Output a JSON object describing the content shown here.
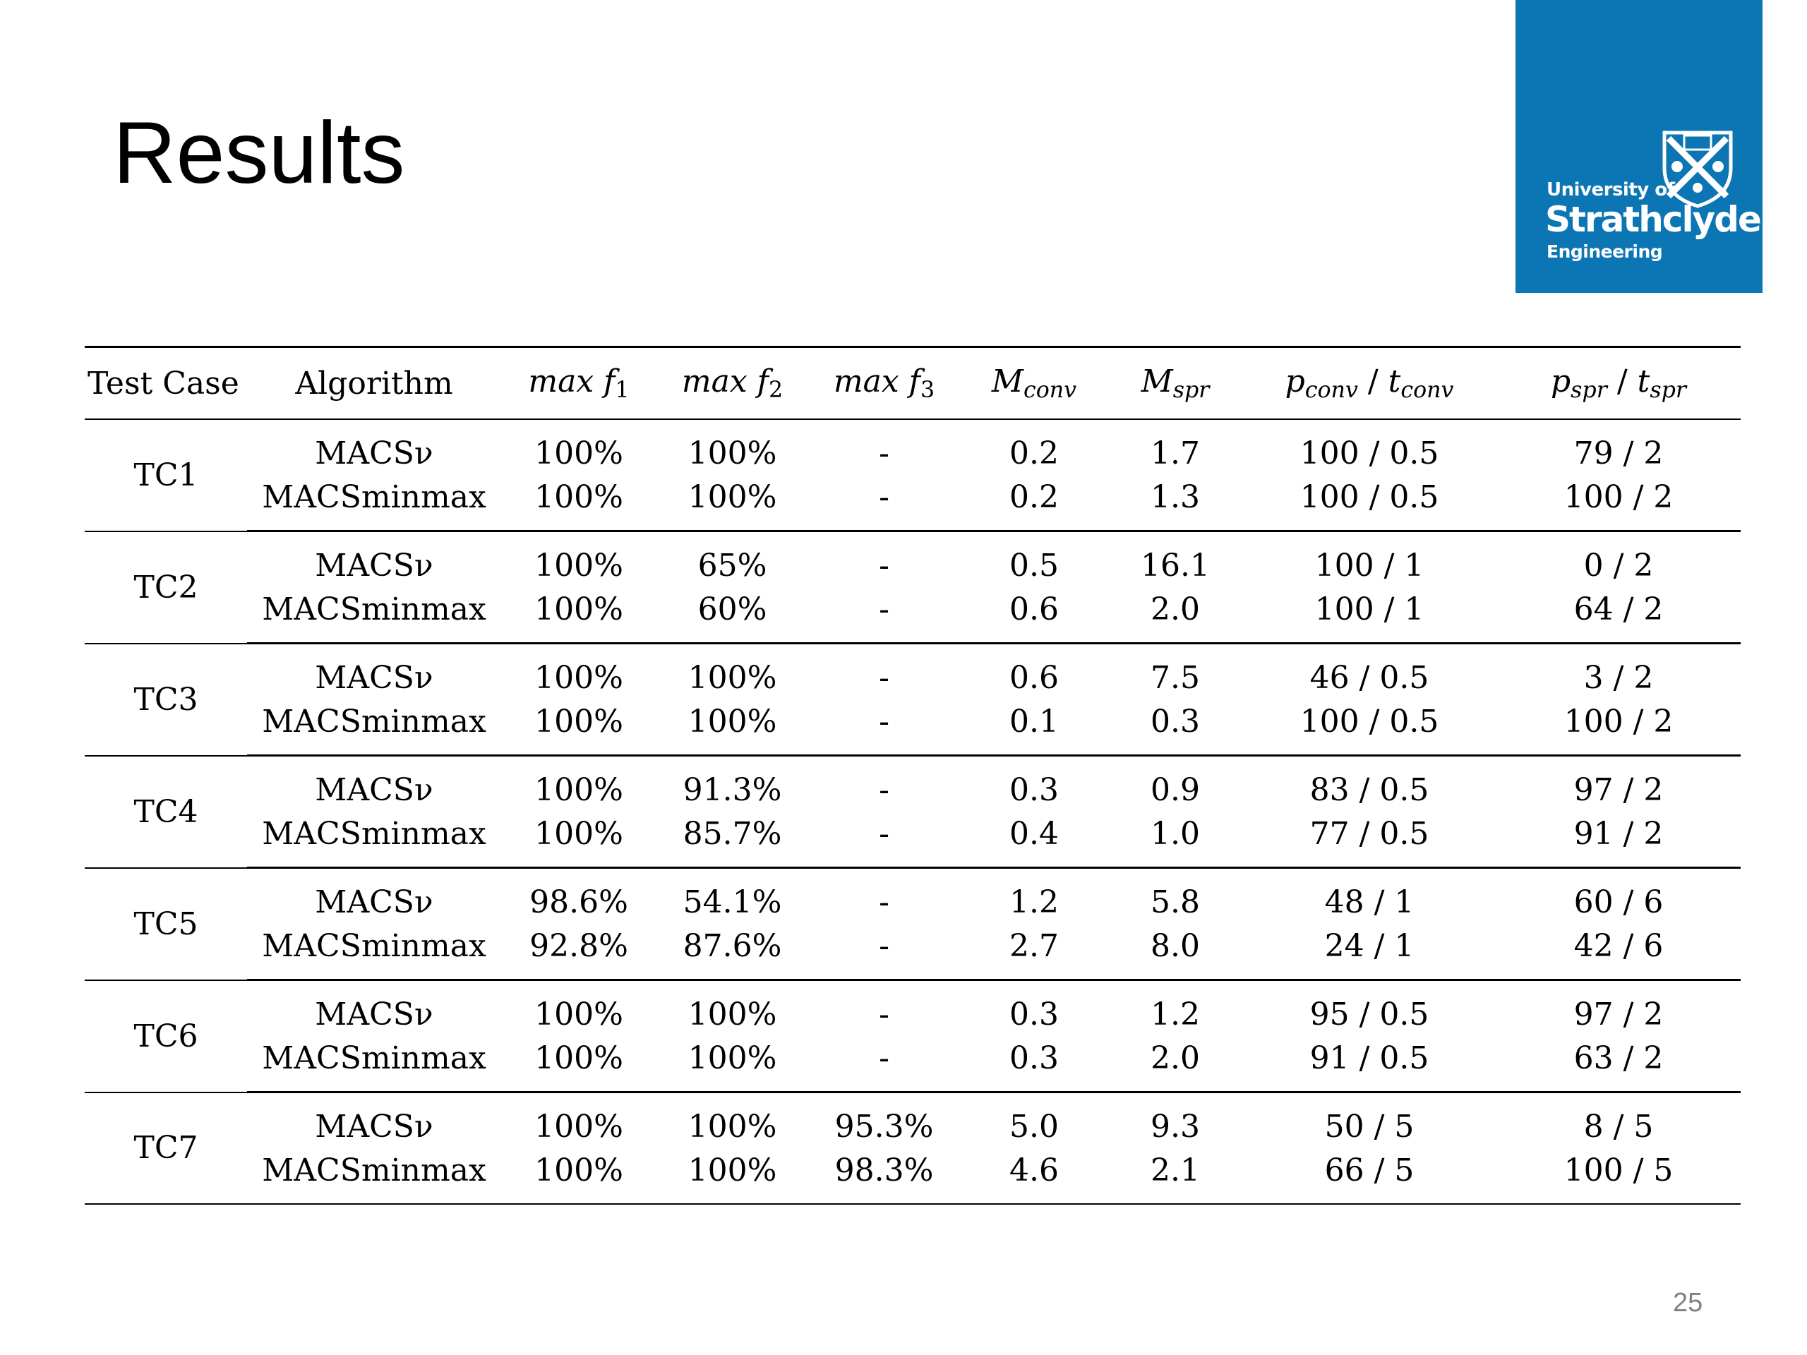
{
  "title": "Results",
  "logo": {
    "line1": "University of",
    "line2": "Strathclyde",
    "line3": "Engineering",
    "background": "#0c75b3"
  },
  "table": {
    "headers": {
      "test_case": "Test Case",
      "algorithm": "Algorithm",
      "max_f1": {
        "base": "max f",
        "sub": "1"
      },
      "max_f2": {
        "base": "max f",
        "sub": "2"
      },
      "max_f3": {
        "base": "max f",
        "sub": "3"
      },
      "m_conv": {
        "base": "M",
        "sub": "conv"
      },
      "m_spr": {
        "base": "M",
        "sub": "spr"
      },
      "p_conv_t_conv": {
        "p": "p",
        "p_sub": "conv",
        "sep": " / ",
        "t": "t",
        "t_sub": "conv"
      },
      "p_spr_t_spr": {
        "p": "p",
        "p_sub": "spr",
        "sep": " / ",
        "t": "t",
        "t_sub": "spr"
      }
    },
    "groups": [
      {
        "case": "TC1",
        "rows": [
          {
            "algorithm": "MACSν",
            "max_f1": "100%",
            "max_f2": "100%",
            "max_f3": "-",
            "m_conv": "0.2",
            "m_spr": "1.7",
            "p_t_conv": "100 / 0.5",
            "p_t_spr": "79 / 2"
          },
          {
            "algorithm": "MACSminmax",
            "max_f1": "100%",
            "max_f2": "100%",
            "max_f3": "-",
            "m_conv": "0.2",
            "m_spr": "1.3",
            "p_t_conv": "100 / 0.5",
            "p_t_spr": "100 / 2"
          }
        ]
      },
      {
        "case": "TC2",
        "rows": [
          {
            "algorithm": "MACSν",
            "max_f1": "100%",
            "max_f2": "65%",
            "max_f3": "-",
            "m_conv": "0.5",
            "m_spr": "16.1",
            "p_t_conv": "100 / 1",
            "p_t_spr": "0 / 2"
          },
          {
            "algorithm": "MACSminmax",
            "max_f1": "100%",
            "max_f2": "60%",
            "max_f3": "-",
            "m_conv": "0.6",
            "m_spr": "2.0",
            "p_t_conv": "100 / 1",
            "p_t_spr": "64 / 2"
          }
        ]
      },
      {
        "case": "TC3",
        "rows": [
          {
            "algorithm": "MACSν",
            "max_f1": "100%",
            "max_f2": "100%",
            "max_f3": "-",
            "m_conv": "0.6",
            "m_spr": "7.5",
            "p_t_conv": "46 / 0.5",
            "p_t_spr": "3 / 2"
          },
          {
            "algorithm": "MACSminmax",
            "max_f1": "100%",
            "max_f2": "100%",
            "max_f3": "-",
            "m_conv": "0.1",
            "m_spr": "0.3",
            "p_t_conv": "100 / 0.5",
            "p_t_spr": "100 / 2"
          }
        ]
      },
      {
        "case": "TC4",
        "rows": [
          {
            "algorithm": "MACSν",
            "max_f1": "100%",
            "max_f2": "91.3%",
            "max_f3": "-",
            "m_conv": "0.3",
            "m_spr": "0.9",
            "p_t_conv": "83 / 0.5",
            "p_t_spr": "97 / 2"
          },
          {
            "algorithm": "MACSminmax",
            "max_f1": "100%",
            "max_f2": "85.7%",
            "max_f3": "-",
            "m_conv": "0.4",
            "m_spr": "1.0",
            "p_t_conv": "77 / 0.5",
            "p_t_spr": "91 / 2"
          }
        ]
      },
      {
        "case": "TC5",
        "rows": [
          {
            "algorithm": "MACSν",
            "max_f1": "98.6%",
            "max_f2": "54.1%",
            "max_f3": "-",
            "m_conv": "1.2",
            "m_spr": "5.8",
            "p_t_conv": "48 / 1",
            "p_t_spr": "60 / 6"
          },
          {
            "algorithm": "MACSminmax",
            "max_f1": "92.8%",
            "max_f2": "87.6%",
            "max_f3": "-",
            "m_conv": "2.7",
            "m_spr": "8.0",
            "p_t_conv": "24 / 1",
            "p_t_spr": "42 / 6"
          }
        ]
      },
      {
        "case": "TC6",
        "rows": [
          {
            "algorithm": "MACSν",
            "max_f1": "100%",
            "max_f2": "100%",
            "max_f3": "-",
            "m_conv": "0.3",
            "m_spr": "1.2",
            "p_t_conv": "95 / 0.5",
            "p_t_spr": "97 / 2"
          },
          {
            "algorithm": "MACSminmax",
            "max_f1": "100%",
            "max_f2": "100%",
            "max_f3": "-",
            "m_conv": "0.3",
            "m_spr": "2.0",
            "p_t_conv": "91 / 0.5",
            "p_t_spr": "63 / 2"
          }
        ]
      },
      {
        "case": "TC7",
        "rows": [
          {
            "algorithm": "MACSν",
            "max_f1": "100%",
            "max_f2": "100%",
            "max_f3": "95.3%",
            "m_conv": "5.0",
            "m_spr": "9.3",
            "p_t_conv": "50 / 5",
            "p_t_spr": "8 / 5"
          },
          {
            "algorithm": "MACSminmax",
            "max_f1": "100%",
            "max_f2": "100%",
            "max_f3": "98.3%",
            "m_conv": "4.6",
            "m_spr": "2.1",
            "p_t_conv": "66 / 5",
            "p_t_spr": "100 / 5"
          }
        ]
      }
    ]
  },
  "page_number": "25"
}
